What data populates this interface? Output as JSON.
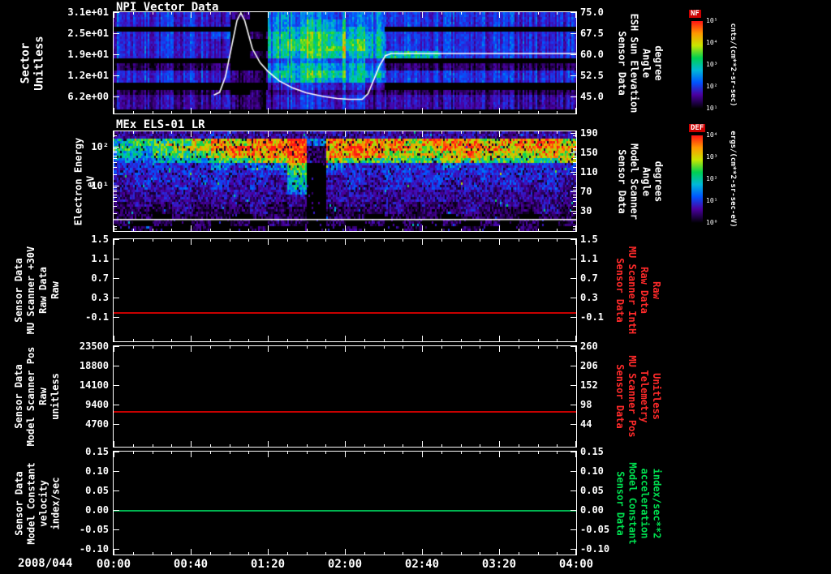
{
  "colors": {
    "background": "#000000",
    "foreground": "#ffffff",
    "red_accent": "#ff2a2a",
    "green_accent": "#00e050",
    "red_line": "#c80000",
    "green_line": "#00b450",
    "overlay_line": "#ffffff"
  },
  "titles": {
    "panel1": "NPI Vector Data",
    "panel2": "MEx ELS-01 LR"
  },
  "x_axis": {
    "date": "2008/044",
    "tick_labels": [
      "00:00",
      "00:40",
      "01:20",
      "02:00",
      "02:40",
      "03:20",
      "04:00"
    ],
    "tick_interval_min": 40
  },
  "panels": [
    {
      "key": "npi-vector",
      "left_label_lines": [
        "Sector",
        "Unitless"
      ],
      "left_label_color": "#ffffff",
      "left_tick_labels": [
        "3.1e+01",
        "2.5e+01",
        "1.9e+01",
        "1.2e+01",
        "6.2e+00"
      ],
      "right_tick_labels": [
        "75.0",
        "67.5",
        "60.0",
        "52.5",
        "45.0"
      ],
      "right_label_lines": [
        "Sensor Data",
        "ESH Sun Elevation",
        "Angle",
        "degree"
      ],
      "right_label_color": "#ffffff"
    },
    {
      "key": "els-spectrogram",
      "left_label_lines": [
        "Electron Energy",
        "eV"
      ],
      "left_label_color": "#ffffff",
      "left_tick_labels": [
        "10²",
        "10¹"
      ],
      "right_tick_labels": [
        "190",
        "150",
        "110",
        "70",
        "30"
      ],
      "right_label_lines": [
        "Sensor Data",
        "Model Scanner",
        "Angle",
        "degrees"
      ],
      "right_label_color": "#ffffff"
    },
    {
      "key": "mu-scanner-30v",
      "left_label_lines": [
        "Sensor Data",
        "MU Scanner +30V",
        "Raw Data",
        "Raw"
      ],
      "left_label_color": "#ffffff",
      "left_tick_labels": [
        "1.5",
        "1.1",
        "0.7",
        "0.3",
        "-0.1"
      ],
      "right_tick_labels": [
        "1.5",
        "1.1",
        "0.7",
        "0.3",
        "-0.1"
      ],
      "right_label_lines": [
        "Sensor Data",
        "MU Scanner IntH",
        "Raw Data",
        "Raw"
      ],
      "right_label_color": "#ff2a2a"
    },
    {
      "key": "model-scanner-pos",
      "left_label_lines": [
        "Sensor Data",
        "Model Scanner Pos",
        "Raw",
        "unitless"
      ],
      "left_label_color": "#ffffff",
      "left_tick_labels": [
        "23500",
        "18800",
        "14100",
        "9400",
        "4700"
      ],
      "right_tick_labels": [
        "260",
        "206",
        "152",
        "98",
        "44"
      ],
      "right_label_lines": [
        "Sensor Data",
        "MU Scanner Pos",
        "Telemetry",
        "Unitless"
      ],
      "right_label_color": "#ff2a2a"
    },
    {
      "key": "model-constant-velocity",
      "left_label_lines": [
        "Sensor Data",
        "Model Constant",
        "velocity",
        "index/sec"
      ],
      "left_label_color": "#ffffff",
      "left_tick_labels": [
        "0.15",
        "0.10",
        "0.05",
        "0.00",
        "-0.05",
        "-0.10"
      ],
      "right_tick_labels": [
        "0.15",
        "0.10",
        "0.05",
        "0.00",
        "-0.05",
        "-0.10"
      ],
      "right_label_lines": [
        "Sensor Data",
        "Model Constant",
        "acceleration",
        "index/sec**2"
      ],
      "right_label_color": "#00e050"
    }
  ],
  "colorbars": [
    {
      "title": "NF",
      "unit": "cnts/(cm**2-sr-sec)",
      "tick_labels": [
        "10⁵",
        "10⁴",
        "10³",
        "10²",
        "10¹"
      ]
    },
    {
      "title": "DEF",
      "unit": "ergs/(cm**2-sr-sec-eV)",
      "tick_labels": [
        "10⁴",
        "10³",
        "10²",
        "10¹",
        "10⁰"
      ]
    }
  ],
  "chart_data": [
    {
      "type": "heatmap",
      "title": "NPI Vector Data",
      "x": {
        "label": "time on 2008/044",
        "start": "00:00",
        "end": "04:00",
        "duration_min": 240
      },
      "y_left": {
        "label": "Sector (Unitless)",
        "tick_values": [
          31,
          25,
          19,
          12,
          6.2
        ]
      },
      "y_right": {
        "label": "Sensor Data ESH Sun Elevation Angle (degree)",
        "tick_values": [
          75.0,
          67.5,
          60.0,
          52.5,
          45.0
        ]
      },
      "colorbar": {
        "name": "NF",
        "unit": "cnts/(cm**2-sr-sec)"
      },
      "grid": {
        "rows": 16,
        "cols": 24,
        "scale": "0=black/no-data .. 9=max(red), coarse estimate from pixels",
        "values_top_to_bottom": [
          "333332104444443333333333",
          "333332004455443333333333",
          "000000004555540000000000",
          "333333015566553333333333",
          "333332005666653333333333",
          "333332005667653333333333",
          "333332015566555553333333",
          "000000003444430000000000",
          "111111004555541111111111",
          "333332115566553333333333",
          "333332114555543333333333",
          "000000002333320000000000",
          "111111011222211111111111",
          "222222112333322222222222",
          "222222112333322222222222",
          "000000000000000000000000"
        ]
      },
      "overlay_line": {
        "name": "ESH Sun Elevation Angle",
        "unit": "degree",
        "points_min_deg": [
          [
            52,
            45.5
          ],
          [
            55,
            46.5
          ],
          [
            58,
            52
          ],
          [
            61,
            62
          ],
          [
            64,
            72
          ],
          [
            66,
            75
          ],
          [
            68,
            72
          ],
          [
            72,
            62
          ],
          [
            76,
            57
          ],
          [
            80,
            54
          ],
          [
            86,
            50.5
          ],
          [
            93,
            48
          ],
          [
            100,
            46.3
          ],
          [
            109,
            45
          ],
          [
            116,
            44.3
          ],
          [
            122,
            44
          ],
          [
            129,
            44
          ],
          [
            132,
            46
          ],
          [
            135,
            51
          ],
          [
            138,
            56
          ],
          [
            141,
            59.5
          ],
          [
            144,
            60.3
          ],
          [
            240,
            60.3
          ]
        ]
      }
    },
    {
      "type": "heatmap",
      "title": "MEx ELS-01 LR",
      "x": {
        "label": "time on 2008/044",
        "start": "00:00",
        "end": "04:00",
        "duration_min": 240
      },
      "y_left": {
        "label": "Electron Energy (eV)",
        "scale": "log",
        "tick_values": [
          100,
          10
        ]
      },
      "y_right": {
        "label": "Sensor Data Model Scanner Angle (degrees)",
        "tick_values": [
          190,
          150,
          110,
          70,
          30
        ]
      },
      "colorbar": {
        "name": "DEF",
        "unit": "ergs/(cm**2-sr-sec-eV)"
      },
      "bottom_white_line": true,
      "grid": {
        "rows": 16,
        "cols": 24,
        "scale": "0=black/no-data .. 9=max(red), coarse estimate from pixels",
        "values_top_to_bottom": [
          "222223222222222222222222",
          "566678788948888788878887",
          "656778989918988878887888",
          "556667888918887777877787",
          "445556677817666667666667",
          "333334344704333334333333",
          "333333333603333333333333",
          "233333232502323333233332",
          "232323232502323232323232",
          "222222222402222222222222",
          "222222222202222222222222",
          "121212121201212121212121",
          "111211121101112111211121",
          "110111011101101110111011",
          "101010101101010101010101",
          "010010010000100100100100"
        ]
      }
    },
    {
      "type": "line",
      "constant": true,
      "series": [
        {
          "name": "Sensor Data MU Scanner +30V Raw Data Raw",
          "axis": "left",
          "value": 0.0,
          "color": "#c80000"
        }
      ],
      "y_left": {
        "label": "Sensor Data MU Scanner +30V Raw Data Raw",
        "tick_values": [
          1.5,
          1.1,
          0.7,
          0.3,
          -0.1
        ]
      },
      "y_right": {
        "label": "Sensor Data MU Scanner IntH Raw Data Raw",
        "tick_values": [
          1.5,
          1.1,
          0.7,
          0.3,
          -0.1
        ]
      }
    },
    {
      "type": "line",
      "constant": true,
      "series": [
        {
          "name": "Sensor Data Model Scanner Pos Raw unitless",
          "axis": "left",
          "value": 7800,
          "right_axis_value": 80,
          "color": "#c80000"
        }
      ],
      "y_left": {
        "label": "Sensor Data Model Scanner Pos Raw unitless",
        "tick_values": [
          23500,
          18800,
          14100,
          9400,
          4700
        ]
      },
      "y_right": {
        "label": "Sensor Data MU Scanner Pos Telemetry Unitless",
        "tick_values": [
          260,
          206,
          152,
          98,
          44
        ]
      }
    },
    {
      "type": "line",
      "constant": true,
      "series": [
        {
          "name": "Sensor Data Model Constant velocity index/sec",
          "axis": "left",
          "value": 0.0,
          "color": "#00b450"
        }
      ],
      "y_left": {
        "label": "Sensor Data Model Constant velocity index/sec",
        "tick_values": [
          0.15,
          0.1,
          0.05,
          0.0,
          -0.05,
          -0.1
        ]
      },
      "y_right": {
        "label": "Sensor Data Model Constant acceleration index/sec**2",
        "tick_values": [
          0.15,
          0.1,
          0.05,
          0.0,
          -0.05,
          -0.1
        ]
      }
    }
  ]
}
